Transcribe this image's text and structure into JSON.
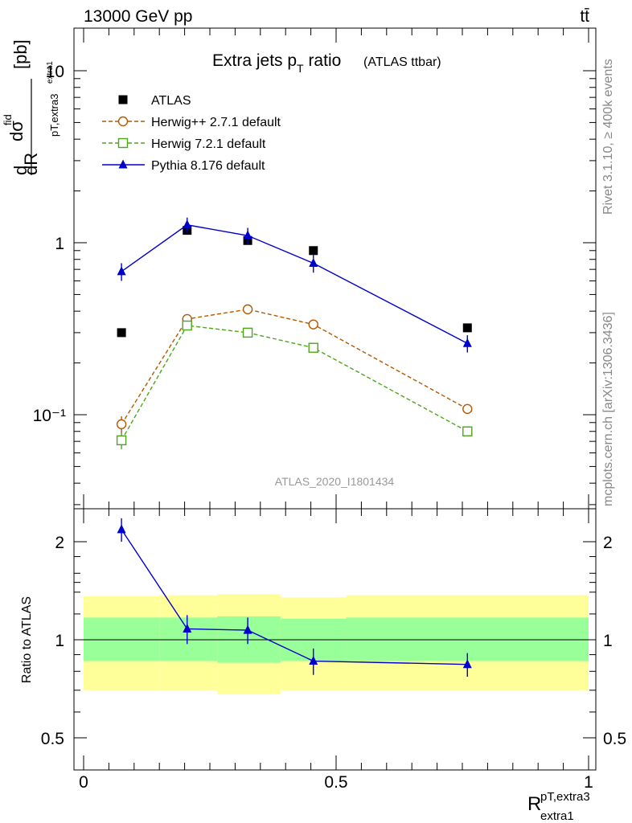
{
  "header": {
    "energy_label": "13000 GeV pp",
    "process_label": "tt̄"
  },
  "side_labels": {
    "rivet": "Rivet 3.1.10, ≥ 400k events",
    "mcplots": "mcplots.cern.ch [arXiv:1306.3436]"
  },
  "analysis_id": "ATLAS_2020_I1801434",
  "colors": {
    "atlas": "#000000",
    "herwig_pp": "#b35900",
    "herwig7": "#4da61a",
    "pythia": "#0000cc",
    "band_inner": "#99ff99",
    "band_outer": "#ffff99"
  },
  "chart_data": [
    {
      "type": "scatter",
      "title": "Extra jets p_T ratio",
      "title_main": "Extra jets p",
      "title_sub": "T",
      "title_rest": " ratio",
      "title_note": "(ATLAS ttbar)",
      "ylabel": "dσ^fid / dR^(pT,extra3)_extra1 [pb]",
      "ylabel_unit": "[pb]",
      "yscale": "log",
      "ylim": [
        0.03,
        18
      ],
      "xlim": [
        -0.02,
        1.01
      ],
      "y_ticks": [
        "10",
        "1",
        "10⁻¹"
      ],
      "legend_position": "top-left",
      "series": [
        {
          "name": "ATLAS",
          "marker": "square-filled",
          "x": [
            0.075,
            0.205,
            0.325,
            0.455,
            0.76
          ],
          "y": [
            0.3,
            1.18,
            1.03,
            0.9,
            0.32
          ]
        },
        {
          "name": "Herwig++ 2.7.1 default",
          "marker": "circle-open",
          "line": "dashed",
          "x": [
            0.075,
            0.205,
            0.325,
            0.455,
            0.76
          ],
          "y": [
            0.088,
            0.36,
            0.41,
            0.335,
            0.108
          ],
          "yerr": [
            0.01,
            0.01,
            0.01,
            0.01,
            0.004
          ]
        },
        {
          "name": "Herwig 7.2.1 default",
          "marker": "square-open",
          "line": "dashed",
          "x": [
            0.075,
            0.205,
            0.325,
            0.455,
            0.76
          ],
          "y": [
            0.071,
            0.33,
            0.3,
            0.245,
            0.08
          ],
          "yerr": [
            0.008,
            0.01,
            0.01,
            0.008,
            0.003
          ]
        },
        {
          "name": "Pythia 8.176 default",
          "marker": "triangle-filled",
          "line": "solid",
          "x": [
            0.075,
            0.205,
            0.325,
            0.455,
            0.76
          ],
          "y": [
            0.68,
            1.27,
            1.1,
            0.76,
            0.26
          ],
          "yerr": [
            0.08,
            0.13,
            0.12,
            0.09,
            0.03
          ]
        }
      ]
    },
    {
      "type": "line",
      "ylabel": "Ratio to ATLAS",
      "xlabel": "R^(pT,extra3)_extra1",
      "xlabel_main": "R",
      "xlabel_sup": "pT,extra3",
      "xlabel_sub": "extra1",
      "ylim": [
        0.4,
        2.35
      ],
      "xlim": [
        -0.02,
        1.01
      ],
      "x_ticks": [
        "0",
        "0.5",
        "1"
      ],
      "y_ticks": [
        "2",
        "1",
        "0.5"
      ],
      "reference": 1.0,
      "bands": [
        {
          "x0": 0.0,
          "x1": 0.15,
          "inner": [
            0.86,
            1.17
          ],
          "outer": [
            0.7,
            1.36
          ]
        },
        {
          "x0": 0.15,
          "x1": 0.265,
          "inner": [
            0.86,
            1.17
          ],
          "outer": [
            0.7,
            1.37
          ]
        },
        {
          "x0": 0.265,
          "x1": 0.39,
          "inner": [
            0.85,
            1.18
          ],
          "outer": [
            0.68,
            1.38
          ]
        },
        {
          "x0": 0.39,
          "x1": 0.52,
          "inner": [
            0.86,
            1.16
          ],
          "outer": [
            0.7,
            1.35
          ]
        },
        {
          "x0": 0.52,
          "x1": 1.0,
          "inner": [
            0.86,
            1.17
          ],
          "outer": [
            0.7,
            1.37
          ]
        }
      ],
      "series": [
        {
          "name": "Pythia 8.176 default",
          "x": [
            0.075,
            0.205,
            0.325,
            0.455,
            0.76
          ],
          "y": [
            2.18,
            1.08,
            1.07,
            0.86,
            0.84
          ],
          "yerr": [
            0.18,
            0.11,
            0.1,
            0.08,
            0.07
          ]
        }
      ]
    }
  ]
}
